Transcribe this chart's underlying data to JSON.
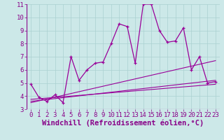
{
  "xlabel": "Windchill (Refroidissement éolien,°C)",
  "bg_color": "#cce8e8",
  "line_color": "#990099",
  "xlim": [
    -0.5,
    23.5
  ],
  "ylim": [
    3,
    11
  ],
  "xticks": [
    0,
    1,
    2,
    3,
    4,
    5,
    6,
    7,
    8,
    9,
    10,
    11,
    12,
    13,
    14,
    15,
    16,
    17,
    18,
    19,
    20,
    21,
    22,
    23
  ],
  "yticks": [
    3,
    4,
    5,
    6,
    7,
    8,
    9,
    10,
    11
  ],
  "main_x": [
    0,
    1,
    2,
    3,
    4,
    5,
    6,
    7,
    8,
    9,
    10,
    11,
    12,
    13,
    14,
    15,
    16,
    17,
    18,
    19,
    20,
    21,
    22,
    23
  ],
  "main_y": [
    4.9,
    3.9,
    3.6,
    4.1,
    3.5,
    7.0,
    5.2,
    6.0,
    6.5,
    6.6,
    8.0,
    9.5,
    9.3,
    6.5,
    11.0,
    11.0,
    9.0,
    8.1,
    8.2,
    9.2,
    6.0,
    7.0,
    5.0,
    5.1
  ],
  "trend1_x": [
    0,
    23
  ],
  "trend1_y": [
    3.5,
    6.7
  ],
  "trend2_x": [
    0,
    23
  ],
  "trend2_y": [
    3.6,
    5.2
  ],
  "trend3_x": [
    0,
    23
  ],
  "trend3_y": [
    3.75,
    4.9
  ],
  "grid_color": "#aad0d0",
  "font_size": 6.5,
  "xlabel_fontsize": 7.5
}
